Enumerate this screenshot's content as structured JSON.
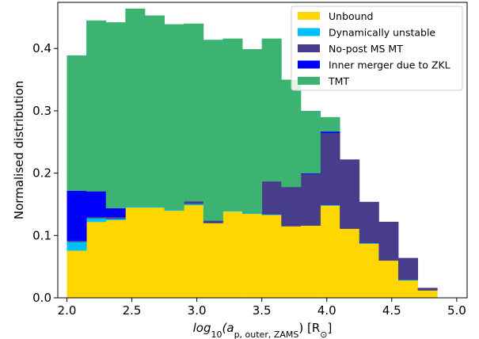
{
  "chart_data": {
    "type": "bar",
    "stacked": true,
    "histogram": true,
    "xlabel_math": {
      "prefix": "log",
      "sub1": "10",
      "open": "(a",
      "sub2": "p, outer, ZAMS",
      "close": ") [R",
      "sub3": "⊙",
      "end": "]"
    },
    "ylabel": "Normalised distribution",
    "xlim": [
      1.93,
      5.08
    ],
    "ylim": [
      0,
      0.474
    ],
    "xticks": [
      2.0,
      2.5,
      3.0,
      3.5,
      4.0,
      4.5,
      5.0
    ],
    "xtick_labels": [
      "2.0",
      "2.5",
      "3.0",
      "3.5",
      "4.0",
      "4.5",
      "5.0"
    ],
    "yticks": [
      0.0,
      0.1,
      0.2,
      0.3,
      0.4
    ],
    "ytick_labels": [
      "0.0",
      "0.1",
      "0.2",
      "0.3",
      "0.4"
    ],
    "bin_edges": [
      2.0,
      2.15,
      2.3,
      2.45,
      2.6,
      2.75,
      2.9,
      3.05,
      3.2,
      3.35,
      3.5,
      3.65,
      3.8,
      3.95,
      4.1,
      4.25,
      4.4,
      4.55,
      4.7,
      4.85,
      5.0
    ],
    "series": [
      {
        "name": "Unbound",
        "color": "#FFD700",
        "values": [
          0.076,
          0.122,
          0.125,
          0.145,
          0.145,
          0.14,
          0.149,
          0.12,
          0.139,
          0.135,
          0.133,
          0.115,
          0.116,
          0.148,
          0.111,
          0.087,
          0.06,
          0.028,
          0.012,
          0.0
        ]
      },
      {
        "name": "Dynamically unstable",
        "color": "#00BFFF",
        "values": [
          0.014,
          0.006,
          0.002,
          0.001,
          0.001,
          0.001,
          0.002,
          0.0,
          0.001,
          0.001,
          0.001,
          0.0,
          0.0,
          0.001,
          0.0,
          0.001,
          0.0,
          0.001,
          0.0,
          0.0
        ]
      },
      {
        "name": "No-post MS MT",
        "color": "#483D8B",
        "values": [
          0.002,
          0.002,
          0.003,
          0.0,
          0.0,
          0.0,
          0.004,
          0.004,
          0.0,
          0.0,
          0.053,
          0.063,
          0.083,
          0.116,
          0.111,
          0.066,
          0.062,
          0.035,
          0.004,
          0.0
        ]
      },
      {
        "name": "Inner merger due to ZKL",
        "color": "#0000FF",
        "values": [
          0.08,
          0.041,
          0.014,
          0.0,
          0.0,
          0.0,
          0.0,
          0.0,
          0.0,
          0.0,
          0.0,
          0.0,
          0.001,
          0.002,
          0.0,
          0.0,
          0.0,
          0.0,
          0.0,
          0.0
        ]
      },
      {
        "name": "TMT",
        "color": "#3CB371",
        "values": [
          0.217,
          0.274,
          0.298,
          0.318,
          0.307,
          0.298,
          0.285,
          0.29,
          0.276,
          0.263,
          0.229,
          0.172,
          0.1,
          0.023,
          0.0,
          0.0,
          0.0,
          0.0,
          0.0,
          0.0
        ]
      }
    ],
    "legend_position": "upper-right",
    "grid": false
  }
}
